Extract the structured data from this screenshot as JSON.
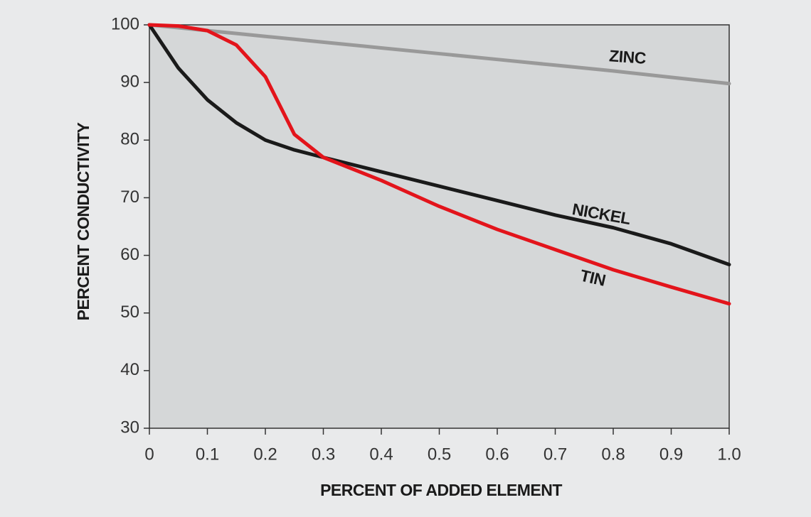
{
  "chart_data": {
    "type": "line",
    "xlabel": "PERCENT OF ADDED ELEMENT",
    "ylabel": "PERCENT CONDUCTIVITY",
    "x": [
      0,
      0.05,
      0.1,
      0.15,
      0.2,
      0.25,
      0.3,
      0.4,
      0.5,
      0.6,
      0.7,
      0.8,
      0.9,
      1.0
    ],
    "series": [
      {
        "name": "ZINC",
        "color": "#999999",
        "values": [
          100,
          99.5,
          99,
          98.5,
          98,
          97.5,
          97,
          96,
          95,
          94,
          93,
          92,
          90.9,
          89.8
        ]
      },
      {
        "name": "NICKEL",
        "color": "#1a1a1a",
        "values": [
          100,
          92.5,
          87,
          83,
          80,
          78.3,
          77,
          74.5,
          72,
          69.5,
          67,
          64.8,
          62,
          58.4
        ]
      },
      {
        "name": "TIN",
        "color": "#e3141b",
        "values": [
          100,
          99.8,
          99,
          96.5,
          91,
          81,
          77,
          73,
          68.5,
          64.5,
          61,
          57.5,
          54.5,
          51.6
        ]
      }
    ],
    "xlim": [
      0,
      1
    ],
    "ylim": [
      30,
      100
    ],
    "xticks": [
      0,
      0.1,
      0.2,
      0.3,
      0.4,
      0.5,
      0.6,
      0.7,
      0.8,
      0.9,
      {
        "value": 1,
        "label": "1.0"
      }
    ],
    "yticks": [
      30,
      40,
      50,
      60,
      70,
      80,
      90,
      100
    ]
  }
}
